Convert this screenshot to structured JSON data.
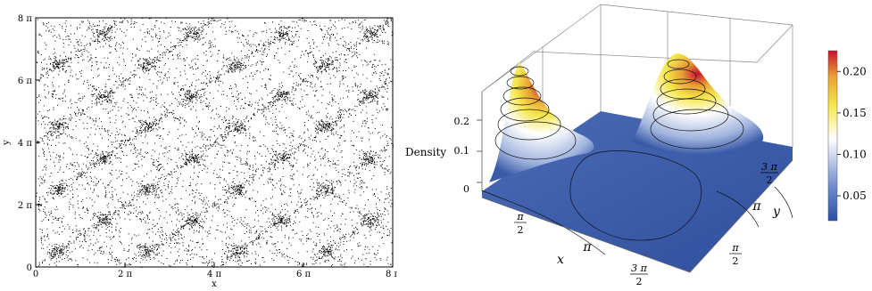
{
  "chart_data": [
    {
      "type": "scatter",
      "xlabel": "x",
      "ylabel": "y",
      "xlim": [
        0,
        8
      ],
      "ylim": [
        0,
        8
      ],
      "axis_unit": "π",
      "x_ticks": [
        "0",
        "2 π",
        "4 π",
        "6 π",
        "8 π"
      ],
      "y_ticks": [
        "0",
        "2 π",
        "4 π",
        "6 π",
        "8 π"
      ],
      "x_tick_values": [
        0,
        2,
        4,
        6,
        8
      ],
      "y_tick_values": [
        0,
        2,
        4,
        6,
        8
      ],
      "cluster_centers": {
        "note_units": "multiples of π",
        "x": [
          0.5,
          1.5,
          2.5,
          3.5,
          4.5,
          5.5,
          6.5,
          7.5
        ],
        "y": [
          0.5,
          1.5,
          2.5,
          3.5,
          4.5,
          5.5,
          6.5,
          7.5
        ]
      },
      "marker_color": "#000000"
    },
    {
      "type": "surface",
      "xlabel": "x",
      "ylabel": "y",
      "zlabel": "Density",
      "z_ticks": [
        "0",
        "0.1",
        "0.2"
      ],
      "x_ticks": [
        {
          "num": "π",
          "den": "2"
        },
        {
          "num": "π",
          "den": ""
        },
        {
          "num": "3 π",
          "den": "2"
        }
      ],
      "y_ticks": [
        {
          "num": "π",
          "den": "2"
        },
        {
          "num": "π",
          "den": ""
        },
        {
          "num": "3 π",
          "den": "2"
        }
      ],
      "peaks": [
        {
          "x": 0.5,
          "y": 1.5,
          "z": 0.21
        },
        {
          "x": 1.5,
          "y": 1.5,
          "z": 0.22
        }
      ],
      "floor_color": "#3A5BA8"
    },
    {
      "type": "colorbar",
      "ticks": [
        "0.05",
        "0.10",
        "0.15",
        "0.20"
      ],
      "tick_values": [
        0.05,
        0.1,
        0.15,
        0.2
      ],
      "range": [
        0.02,
        0.225
      ],
      "colors": [
        "#2E4FA6",
        "#6E8BCB",
        "#FFFFFF",
        "#F5E64A",
        "#E8A035",
        "#C8102E"
      ]
    }
  ]
}
